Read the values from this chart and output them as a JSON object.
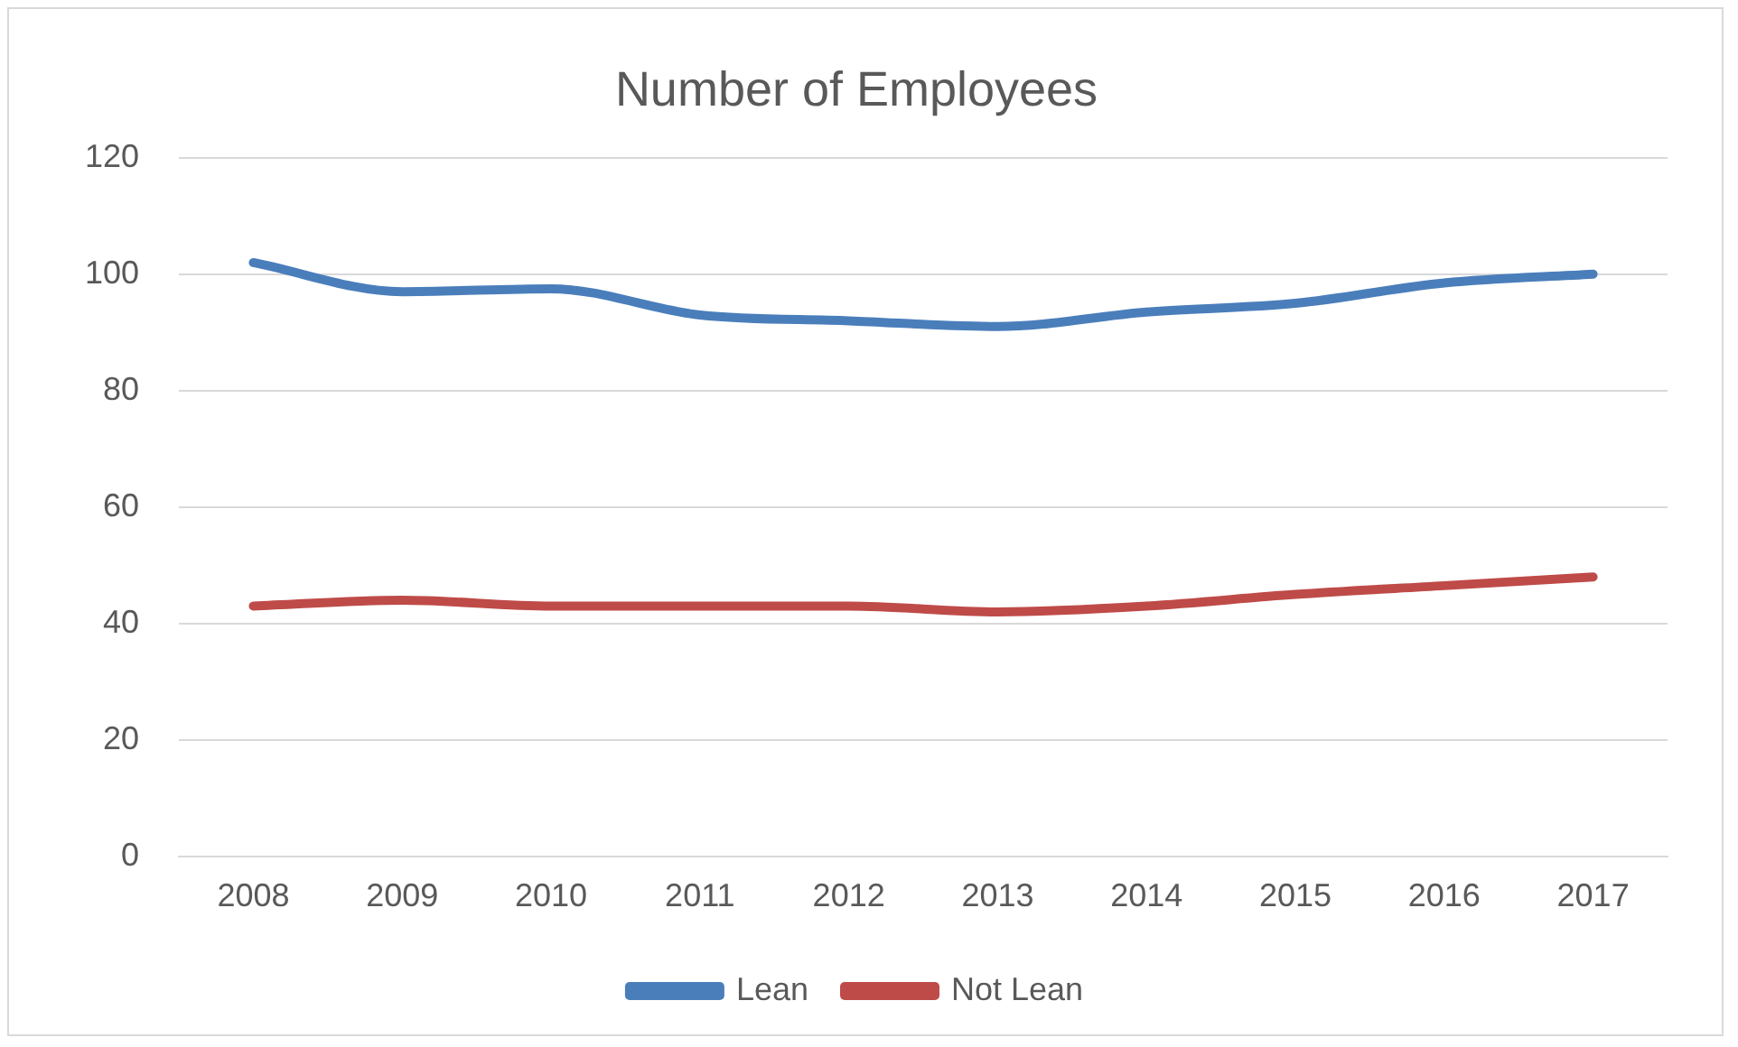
{
  "chart_data": {
    "type": "line",
    "title": "Number of Employees",
    "categories": [
      "2008",
      "2009",
      "2010",
      "2011",
      "2012",
      "2013",
      "2014",
      "2015",
      "2016",
      "2017"
    ],
    "series": [
      {
        "name": "Lean",
        "color": "#4a7ebb",
        "values": [
          102,
          97,
          97.5,
          93,
          92,
          91,
          93.5,
          95,
          98.5,
          100
        ]
      },
      {
        "name": "Not Lean",
        "color": "#be4b48",
        "values": [
          43,
          44,
          43,
          43,
          43,
          42,
          43,
          45,
          46.5,
          48
        ]
      }
    ],
    "ylim": [
      0,
      120
    ],
    "yticks": [
      0,
      20,
      40,
      60,
      80,
      100,
      120
    ],
    "grid": "y",
    "legend": "bottom",
    "marker": "none",
    "line_style": "solid"
  }
}
